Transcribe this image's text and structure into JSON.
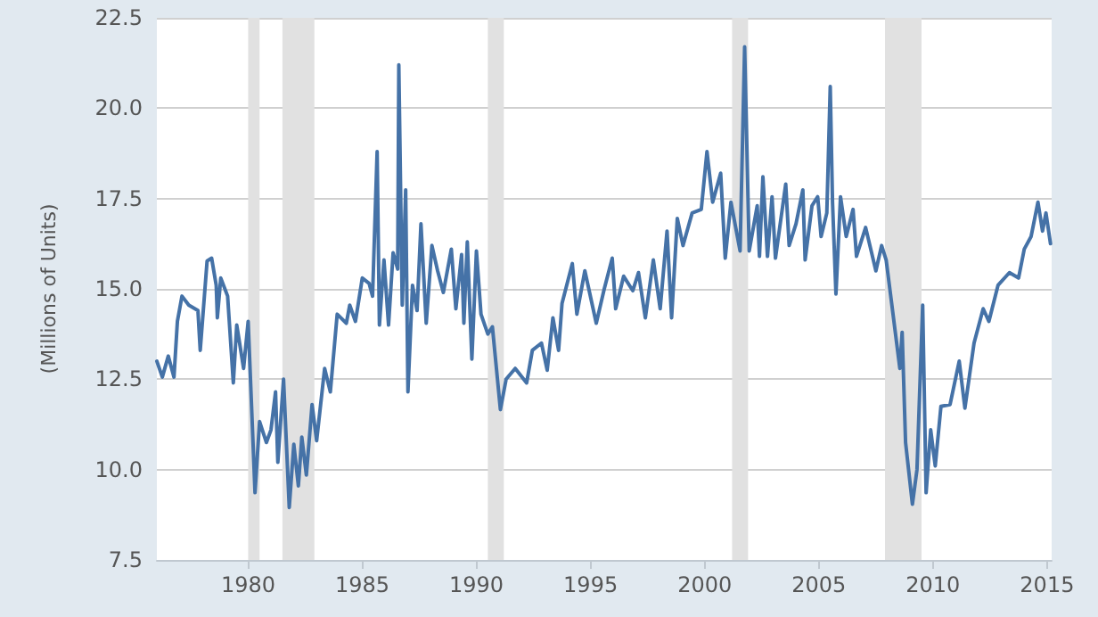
{
  "chart_data": {
    "type": "line",
    "ylabel": "(Millions of Units)",
    "xlim": [
      1976,
      2015.2
    ],
    "xticks": [
      1980,
      1985,
      1990,
      1995,
      2000,
      2005,
      2010,
      2015
    ],
    "ylim": [
      7.5,
      22.5
    ],
    "yticks": [
      "7.5",
      {
        "value": 10,
        "label": "10.0"
      },
      "12.5",
      {
        "value": 15,
        "label": "15.0"
      },
      "17.5",
      {
        "value": 20,
        "label": "20.0"
      },
      "22.5"
    ],
    "grid": "y",
    "marker": "none",
    "line_style": "solid",
    "bands": [
      {
        "axis": "x",
        "from": 1980.0,
        "to": 1980.5,
        "color": "#e1e1e1"
      },
      {
        "axis": "x",
        "from": 1981.5,
        "to": 1982.9,
        "color": "#e1e1e1"
      },
      {
        "axis": "x",
        "from": 1990.5,
        "to": 1991.2,
        "color": "#e1e1e1"
      },
      {
        "axis": "x",
        "from": 2001.2,
        "to": 2001.9,
        "color": "#e1e1e1"
      },
      {
        "axis": "x",
        "from": 2007.9,
        "to": 2009.5,
        "color": "#e1e1e1"
      }
    ],
    "series": [
      {
        "color": "#4572a7",
        "x": [
          1976.0,
          1976.24,
          1976.5,
          1976.75,
          1976.9,
          1977.1,
          1977.4,
          1977.8,
          1977.9,
          1978.2,
          1978.4,
          1978.6,
          1978.65,
          1978.8,
          1979.1,
          1979.35,
          1979.5,
          1979.8,
          1980.0,
          1980.3,
          1980.5,
          1980.8,
          1981.0,
          1981.2,
          1981.3,
          1981.55,
          1981.8,
          1982.0,
          1982.2,
          1982.35,
          1982.55,
          1982.8,
          1983.0,
          1983.35,
          1983.6,
          1983.9,
          1984.3,
          1984.45,
          1984.7,
          1985.0,
          1985.3,
          1985.45,
          1985.65,
          1985.75,
          1985.95,
          1986.15,
          1986.35,
          1986.55,
          1986.6,
          1986.75,
          1986.9,
          1987.0,
          1987.2,
          1987.4,
          1987.57,
          1987.8,
          1988.05,
          1988.3,
          1988.55,
          1988.9,
          1989.1,
          1989.35,
          1989.45,
          1989.6,
          1989.8,
          1990.0,
          1990.2,
          1990.5,
          1990.7,
          1991.05,
          1991.3,
          1991.7,
          1992.2,
          1992.45,
          1992.85,
          1993.1,
          1993.35,
          1993.6,
          1993.75,
          1994.2,
          1994.4,
          1994.75,
          1995.25,
          1995.6,
          1995.95,
          1996.1,
          1996.45,
          1996.85,
          1997.1,
          1997.4,
          1997.75,
          1998.05,
          1998.35,
          1998.55,
          1998.8,
          1999.05,
          1999.45,
          1999.85,
          2000.1,
          2000.35,
          2000.7,
          2000.9,
          2001.15,
          2001.55,
          2001.75,
          2001.95,
          2002.3,
          2002.4,
          2002.55,
          2002.75,
          2002.95,
          2003.1,
          2003.55,
          2003.7,
          2004.0,
          2004.3,
          2004.4,
          2004.7,
          2004.95,
          2005.1,
          2005.35,
          2005.5,
          2005.6,
          2005.75,
          2005.95,
          2006.2,
          2006.5,
          2006.65,
          2007.05,
          2007.5,
          2007.75,
          2007.95,
          2008.25,
          2008.55,
          2008.65,
          2008.8,
          2009.1,
          2009.3,
          2009.55,
          2009.7,
          2009.9,
          2010.1,
          2010.35,
          2010.75,
          2011.15,
          2011.4,
          2011.8,
          2012.2,
          2012.45,
          2012.85,
          2013.35,
          2013.75,
          2014.0,
          2014.3,
          2014.6,
          2014.8,
          2014.95,
          2015.15
        ],
        "values": [
          13.0,
          12.56,
          13.14,
          12.56,
          14.1,
          14.8,
          14.55,
          14.4,
          13.3,
          15.77,
          15.85,
          15.1,
          14.2,
          15.3,
          14.8,
          12.4,
          14.0,
          12.8,
          14.1,
          9.36,
          11.33,
          10.75,
          11.1,
          12.15,
          10.2,
          12.5,
          8.95,
          10.7,
          9.55,
          10.9,
          9.85,
          11.8,
          10.8,
          12.8,
          12.15,
          14.3,
          14.05,
          14.55,
          14.1,
          15.3,
          15.15,
          14.8,
          18.8,
          14.0,
          15.8,
          14.0,
          16.0,
          15.55,
          21.2,
          14.55,
          17.74,
          12.15,
          15.1,
          14.4,
          16.8,
          14.05,
          16.2,
          15.5,
          14.9,
          16.1,
          14.45,
          15.95,
          14.05,
          16.3,
          13.06,
          16.05,
          14.3,
          13.75,
          13.95,
          11.66,
          12.5,
          12.8,
          12.4,
          13.3,
          13.5,
          12.75,
          14.2,
          13.3,
          14.6,
          15.7,
          14.3,
          15.5,
          14.05,
          15.0,
          15.85,
          14.45,
          15.35,
          14.95,
          15.45,
          14.2,
          15.8,
          14.45,
          16.6,
          14.2,
          16.95,
          16.2,
          17.1,
          17.2,
          18.8,
          17.4,
          18.2,
          15.85,
          17.4,
          16.05,
          21.7,
          16.05,
          17.3,
          15.9,
          18.1,
          15.9,
          17.55,
          15.85,
          17.9,
          16.2,
          16.8,
          17.74,
          15.8,
          17.3,
          17.55,
          16.45,
          17.1,
          20.6,
          17.4,
          14.86,
          17.55,
          16.45,
          17.2,
          15.9,
          16.7,
          15.5,
          16.2,
          15.8,
          14.3,
          12.8,
          13.8,
          10.75,
          9.04,
          10.0,
          14.55,
          9.36,
          11.1,
          10.1,
          11.75,
          11.8,
          13.0,
          11.7,
          13.5,
          14.45,
          14.1,
          15.1,
          15.45,
          15.3,
          16.1,
          16.45,
          17.4,
          16.6,
          17.1,
          16.25
        ]
      }
    ]
  }
}
